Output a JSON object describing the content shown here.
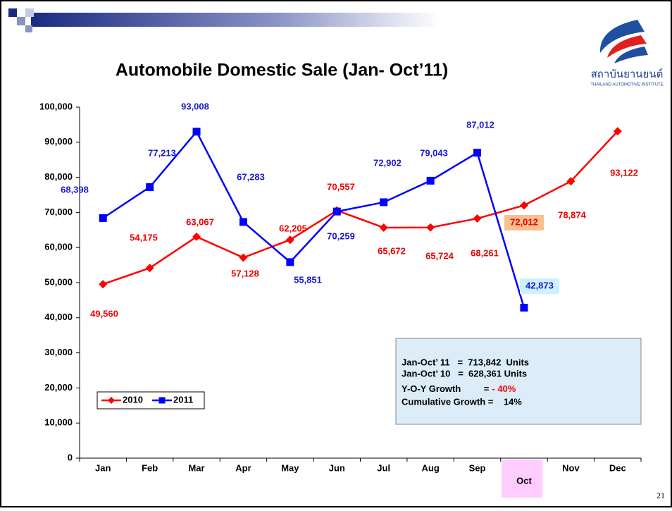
{
  "header": {
    "logo_text": "สถาบันยานยนต์",
    "logo_subtext": "THAILAND AUTOMOTIVE INSTITUTE"
  },
  "chart_data": {
    "type": "line",
    "title": "Automobile Domestic Sale (Jan- Oct’11)",
    "categories": [
      "Jan",
      "Feb",
      "Mar",
      "Apr",
      "May",
      "Jun",
      "Jul",
      "Aug",
      "Sep",
      "Oct",
      "Nov",
      "Dec"
    ],
    "series": [
      {
        "name": "2010",
        "color": "#ff0000",
        "values": [
          49560,
          54175,
          63067,
          57128,
          62205,
          70557,
          65672,
          65724,
          68261,
          72012,
          78874,
          93122
        ],
        "value_labels": [
          "49,560",
          "54,175",
          "63,067",
          "57,128",
          "62,205",
          "70,557",
          "65,672",
          "65,724",
          "68,261",
          "72,012",
          "78,874",
          "93,122"
        ]
      },
      {
        "name": "2011",
        "color": "#0000ff",
        "values": [
          68398,
          77213,
          93008,
          67283,
          55851,
          70259,
          72902,
          79043,
          87012,
          42873,
          null,
          null
        ],
        "value_labels": [
          "68,398",
          "77,213",
          "93,008",
          "67,283",
          "55,851",
          "70,259",
          "72,902",
          "79,043",
          "87,012",
          "42,873",
          null,
          null
        ]
      }
    ],
    "ylim": [
      0,
      100000
    ],
    "yticks": [
      0,
      {
        "value": 10000,
        "label": "10,000"
      },
      {
        "value": 20000,
        "label": "20,000"
      },
      {
        "value": 30000,
        "label": "30,000"
      },
      {
        "value": 40000,
        "label": "40,000"
      },
      {
        "value": 50000,
        "label": "50,000"
      },
      {
        "value": 60000,
        "label": "60,000"
      },
      {
        "value": 70000,
        "label": "70,000"
      },
      {
        "value": 80000,
        "label": "80,000"
      },
      {
        "value": 90000,
        "label": "90,000"
      },
      {
        "value": 100000,
        "label": "100,000"
      }
    ],
    "legend": "lower left",
    "info_box": {
      "lines": [
        "Jan-Oct’ 11   =  713,842  Units",
        "Jan-Oct’ 10   =  628,361 Units"
      ],
      "growth_label": "Y-O-Y Growth         =",
      "growth_value": "- 40%",
      "cumulative": "Cumulative Growth =    14%"
    }
  },
  "page_number": "21"
}
